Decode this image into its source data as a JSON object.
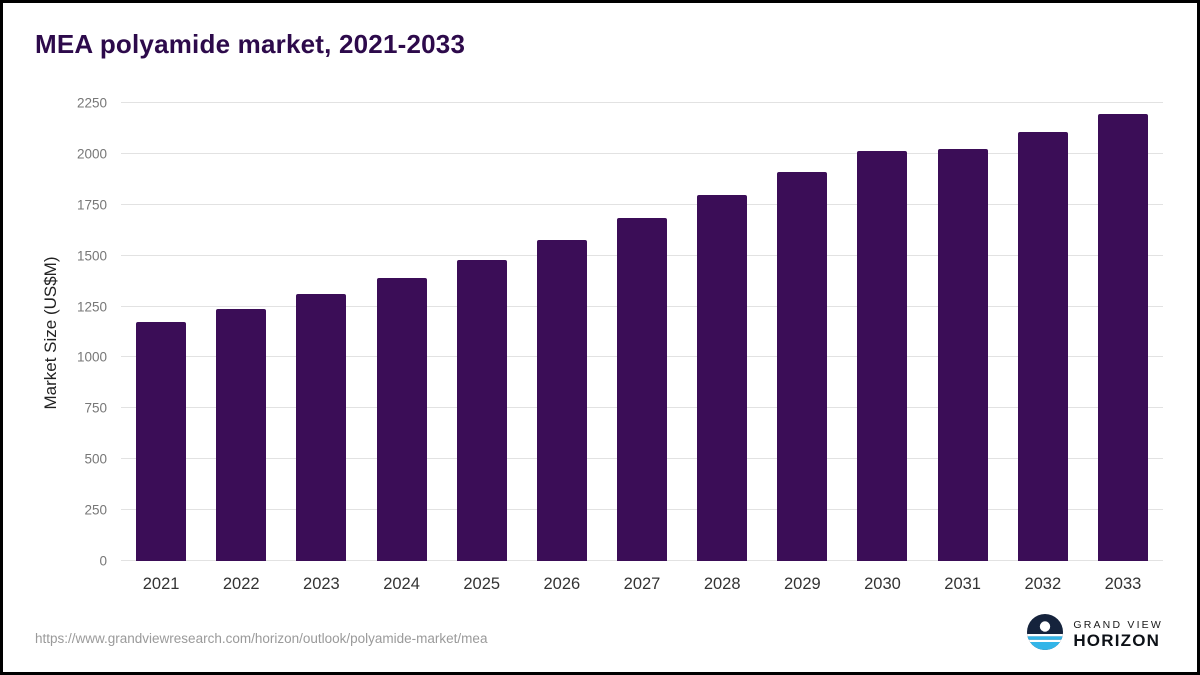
{
  "title": "MEA polyamide market, 2021-2033",
  "chart_data": {
    "type": "bar",
    "title": "MEA polyamide market, 2021-2033",
    "xlabel": "",
    "ylabel": "Market Size (US$M)",
    "categories": [
      "2021",
      "2022",
      "2023",
      "2024",
      "2025",
      "2026",
      "2027",
      "2028",
      "2029",
      "2030",
      "2031",
      "2032",
      "2033"
    ],
    "values": [
      1175,
      1240,
      1310,
      1390,
      1480,
      1575,
      1685,
      1800,
      1910,
      2015,
      2025,
      2110,
      2195
    ],
    "ylim": [
      0,
      2250
    ],
    "yticks": [
      0,
      250,
      500,
      750,
      1000,
      1250,
      1500,
      1750,
      2000,
      2250
    ],
    "grid": true,
    "legend_position": "none",
    "bar_color": "#3b0d57"
  },
  "colors": {
    "bar": "#3b0d57",
    "title": "#2d0a4b",
    "gridline": "#e2e2e2",
    "logo_navy": "#15233c",
    "logo_cyan": "#33b5e8"
  },
  "footer": {
    "source_url": "https://www.grandviewresearch.com/horizon/outlook/polyamide-market/mea",
    "logo_line1": "GRAND VIEW",
    "logo_line2": "HORIZON"
  }
}
